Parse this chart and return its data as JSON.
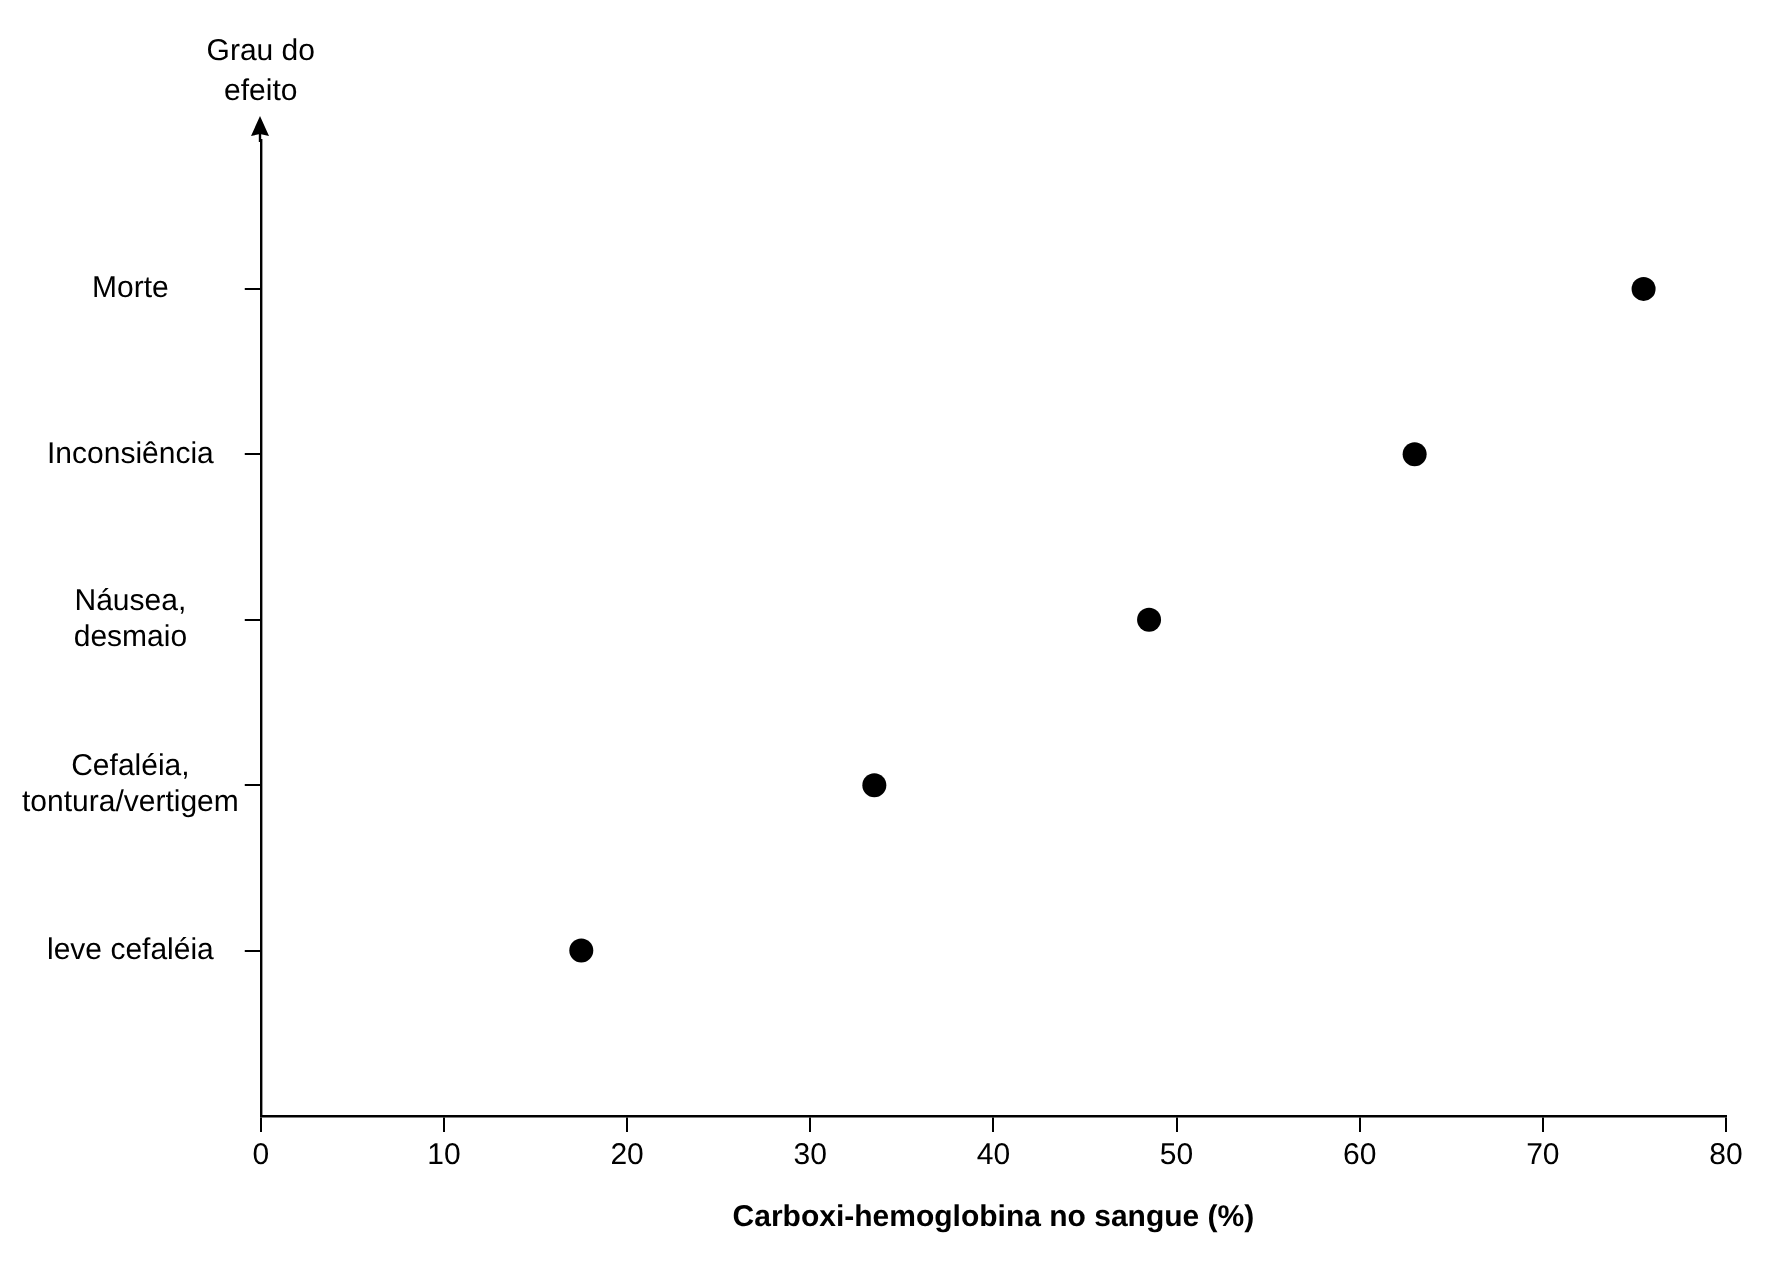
{
  "chart_data": {
    "type": "scatter",
    "orientation": "horizontal",
    "xlabel": "Carboxi-hemoglobina no sangue (%)",
    "ylabel": "Grau do efeito",
    "categories": [
      "Morte",
      "Inconsiência",
      "Náusea, desmaio",
      "Cefaléia, tontura/vertigem",
      "leve cefaléia"
    ],
    "series": [
      {
        "color": "#000000",
        "values": [
          75.5,
          63,
          48.5,
          33.5,
          17.5
        ]
      }
    ],
    "xlim": [
      0,
      80
    ],
    "xticks": [
      0,
      10,
      20,
      30,
      40,
      50,
      60,
      70,
      80
    ],
    "grid": false,
    "legend": false,
    "marker": "circle"
  }
}
